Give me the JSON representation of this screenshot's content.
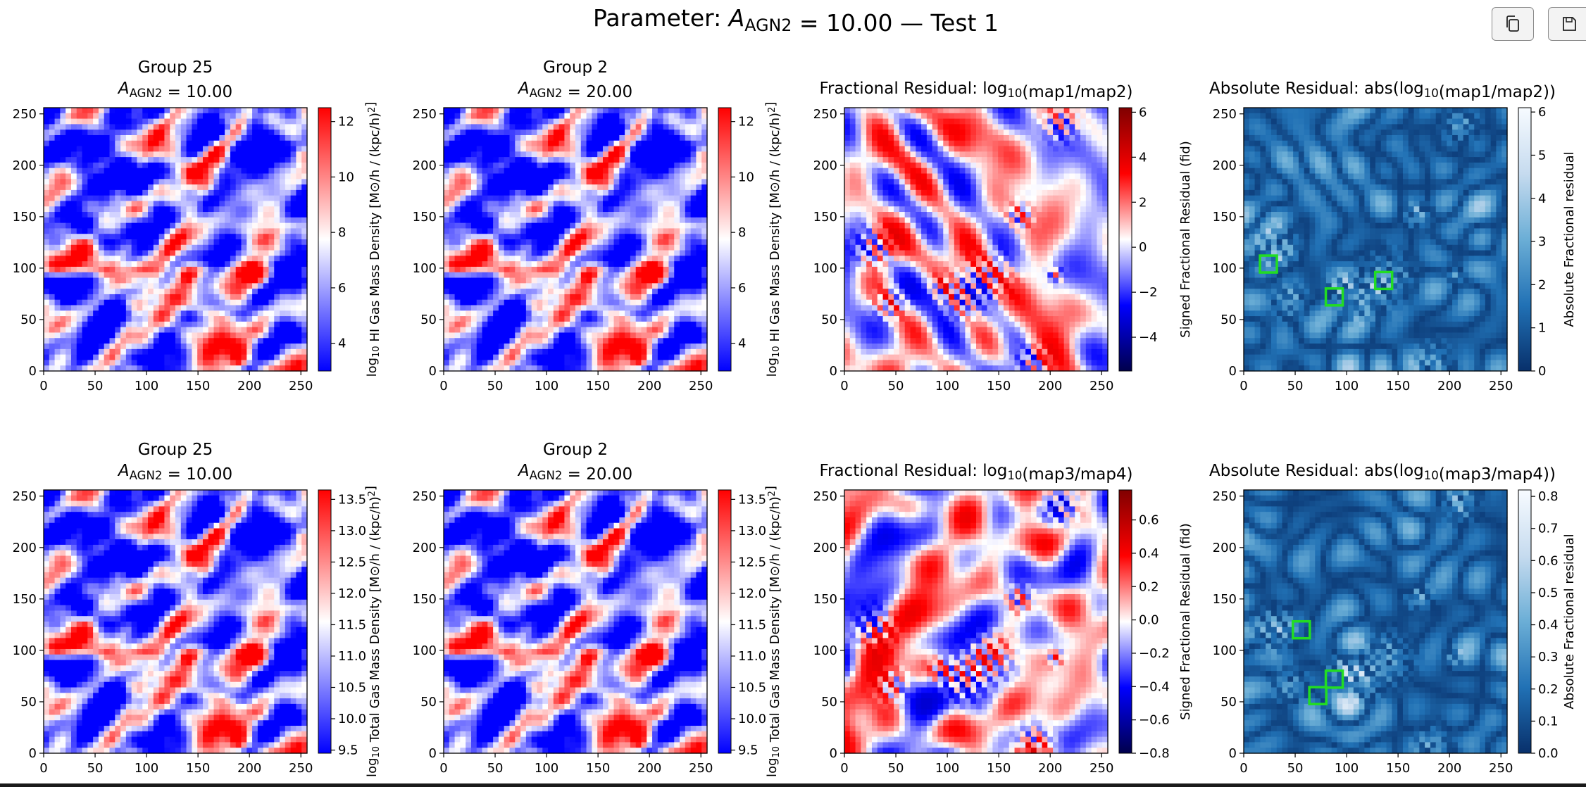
{
  "suptitle": "Parameter: A_AGN2 = 10.00 — Test 1",
  "toolbar": {
    "copy_icon": "copy-icon",
    "save_icon": "save-icon"
  },
  "colors": {
    "bwr_low": "#0000ff",
    "bwr_mid": "#ffffff",
    "bwr_high": "#ff0000",
    "seismic_low": "#00004c",
    "seismic_high": "#800000",
    "blues_dark": "#08306b",
    "blues_light": "#f7fbff",
    "marker": "#22dd22"
  },
  "chart_data": [
    {
      "type": "heatmap",
      "title": [
        "Group 25",
        "A_AGN2 = 10.00"
      ],
      "xlim": [
        0,
        256
      ],
      "ylim": [
        0,
        256
      ],
      "xticks": [
        "0",
        "50",
        "100",
        "150",
        "200",
        "250"
      ],
      "yticks": [
        "0",
        "50",
        "100",
        "150",
        "200",
        "250"
      ],
      "colormap": "bwr",
      "colorbar": {
        "label": "log10 HI Gas Mass Density [M⊙/h / (kpc/h)²]",
        "range": [
          3.0,
          12.5
        ],
        "ticks": [
          "4",
          "6",
          "8",
          "10",
          "12"
        ]
      }
    },
    {
      "type": "heatmap",
      "title": [
        "Group 2",
        "A_AGN2 = 20.00"
      ],
      "xlim": [
        0,
        256
      ],
      "ylim": [
        0,
        256
      ],
      "xticks": [
        "0",
        "50",
        "100",
        "150",
        "200",
        "250"
      ],
      "yticks": [
        "0",
        "50",
        "100",
        "150",
        "200",
        "250"
      ],
      "colormap": "bwr",
      "colorbar": {
        "label": "log10 HI Gas Mass Density [M⊙/h / (kpc/h)²]",
        "range": [
          3.0,
          12.5
        ],
        "ticks": [
          "4",
          "6",
          "8",
          "10",
          "12"
        ]
      }
    },
    {
      "type": "heatmap",
      "title": [
        "Fractional Residual: log10(map1/map2)"
      ],
      "xlim": [
        0,
        256
      ],
      "ylim": [
        0,
        256
      ],
      "xticks": [
        "0",
        "50",
        "100",
        "150",
        "200",
        "250"
      ],
      "yticks": [
        "0",
        "50",
        "100",
        "150",
        "200",
        "250"
      ],
      "colormap": "seismic",
      "colorbar": {
        "label": "Signed Fractional Residual (fid)",
        "range": [
          -5.5,
          6.2
        ],
        "ticks": [
          "6",
          "4",
          "2",
          "0",
          "−2",
          "−4"
        ]
      }
    },
    {
      "type": "heatmap",
      "title": [
        "Absolute Residual: abs(log10(map1/map2))"
      ],
      "xlim": [
        0,
        256
      ],
      "ylim": [
        0,
        256
      ],
      "xticks": [
        "0",
        "50",
        "100",
        "150",
        "200",
        "250"
      ],
      "yticks": [
        "0",
        "50",
        "100",
        "150",
        "200",
        "250"
      ],
      "colormap": "Blues_r",
      "colorbar": {
        "label": "Absolute  Fractional residual",
        "range": [
          0,
          6.1
        ],
        "ticks": [
          "6",
          "5",
          "4",
          "3",
          "2",
          "1",
          "0"
        ]
      },
      "highlight_boxes": [
        {
          "center": [
            24,
            104
          ]
        },
        {
          "center": [
            88,
            72
          ]
        },
        {
          "center": [
            136,
            88
          ]
        }
      ]
    },
    {
      "type": "heatmap",
      "title": [
        "Group 25",
        "A_AGN2 = 10.00"
      ],
      "xlim": [
        0,
        256
      ],
      "ylim": [
        0,
        256
      ],
      "xticks": [
        "0",
        "50",
        "100",
        "150",
        "200",
        "250"
      ],
      "yticks": [
        "0",
        "50",
        "100",
        "150",
        "200",
        "250"
      ],
      "colormap": "bwr",
      "colorbar": {
        "label": "log10 Total Gas Mass Density [M⊙/h / (kpc/h)²]",
        "range": [
          9.45,
          13.65
        ],
        "ticks": [
          "13.5",
          "13.0",
          "12.5",
          "12.0",
          "11.5",
          "11.0",
          "10.5",
          "10.0",
          "9.5"
        ]
      }
    },
    {
      "type": "heatmap",
      "title": [
        "Group 2",
        "A_AGN2 = 20.00"
      ],
      "xlim": [
        0,
        256
      ],
      "ylim": [
        0,
        256
      ],
      "xticks": [
        "0",
        "50",
        "100",
        "150",
        "200",
        "250"
      ],
      "yticks": [
        "0",
        "50",
        "100",
        "150",
        "200",
        "250"
      ],
      "colormap": "bwr",
      "colorbar": {
        "label": "log10 Total Gas Mass Density [M⊙/h / (kpc/h)²]",
        "range": [
          9.45,
          13.65
        ],
        "ticks": [
          "13.5",
          "13.0",
          "12.5",
          "12.0",
          "11.5",
          "11.0",
          "10.5",
          "10.0",
          "9.5"
        ]
      }
    },
    {
      "type": "heatmap",
      "title": [
        "Fractional Residual: log10(map3/map4)"
      ],
      "xlim": [
        0,
        256
      ],
      "ylim": [
        0,
        256
      ],
      "xticks": [
        "0",
        "50",
        "100",
        "150",
        "200",
        "250"
      ],
      "yticks": [
        "0",
        "50",
        "100",
        "150",
        "200",
        "250"
      ],
      "colormap": "seismic",
      "colorbar": {
        "label": "Signed Fractional Residual (fid)",
        "range": [
          -0.8,
          0.78
        ],
        "ticks": [
          "0.6",
          "0.4",
          "0.2",
          "0.0",
          "−0.2",
          "−0.4",
          "−0.6",
          "−0.8"
        ]
      }
    },
    {
      "type": "heatmap",
      "title": [
        "Absolute Residual: abs(log10(map3/map4))"
      ],
      "xlim": [
        0,
        256
      ],
      "ylim": [
        0,
        256
      ],
      "xticks": [
        "0",
        "50",
        "100",
        "150",
        "200",
        "250"
      ],
      "yticks": [
        "0",
        "50",
        "100",
        "150",
        "200",
        "250"
      ],
      "colormap": "Blues_r",
      "colorbar": {
        "label": "Absolute  Fractional residual",
        "range": [
          0,
          0.82
        ],
        "ticks": [
          "0.8",
          "0.7",
          "0.6",
          "0.5",
          "0.4",
          "0.3",
          "0.2",
          "0.1",
          "0.0"
        ]
      },
      "highlight_boxes": [
        {
          "center": [
            56,
            120
          ]
        },
        {
          "center": [
            72,
            56
          ]
        },
        {
          "center": [
            88,
            72
          ]
        }
      ]
    }
  ]
}
